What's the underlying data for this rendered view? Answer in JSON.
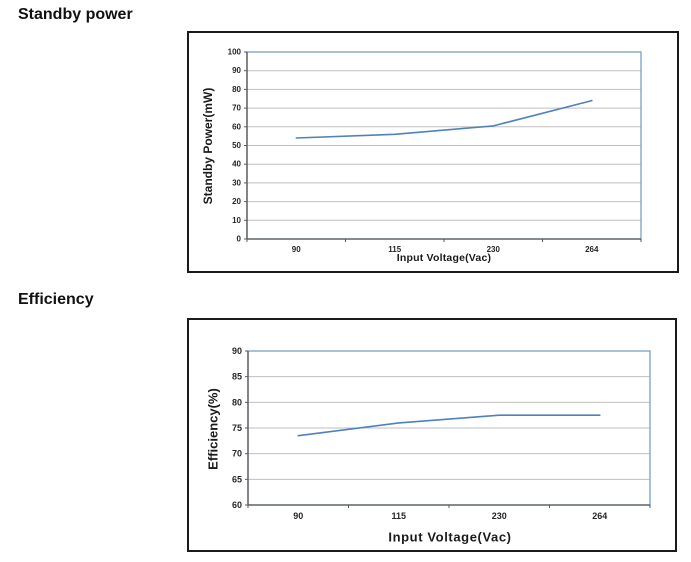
{
  "headings": [
    {
      "text": "Standby power"
    },
    {
      "text": "Efficiency"
    }
  ],
  "colors": {
    "series_line": "#4f81bd",
    "plot_border": "#87a5c6",
    "gridline": "#bfbfbf",
    "axis_line": "#595959",
    "tick_label": "#262626",
    "chart_frame": "#1a1a1a"
  },
  "chart_data": [
    {
      "type": "line",
      "title": "Standby power",
      "categories": [
        "90",
        "115",
        "230",
        "264"
      ],
      "series": [
        {
          "name": "Standby Power(mW)",
          "values": [
            54,
            56,
            60.5,
            74
          ]
        }
      ],
      "xlabel": "Input Voltage(Vac)",
      "ylabel": "Standby Power(mW)",
      "ylim": [
        0,
        100
      ],
      "ytick_step": 10,
      "grid": true,
      "legend": "none"
    },
    {
      "type": "line",
      "title": "Efficiency",
      "categories": [
        "90",
        "115",
        "230",
        "264"
      ],
      "series": [
        {
          "name": "Efficiency(%)",
          "values": [
            73.5,
            76,
            77.5,
            77.5
          ]
        }
      ],
      "xlabel": "Input Voltage(Vac)",
      "ylabel": "Efficiency(%)",
      "ylim": [
        60,
        90
      ],
      "ytick_step": 5,
      "grid": true,
      "legend": "none"
    }
  ]
}
